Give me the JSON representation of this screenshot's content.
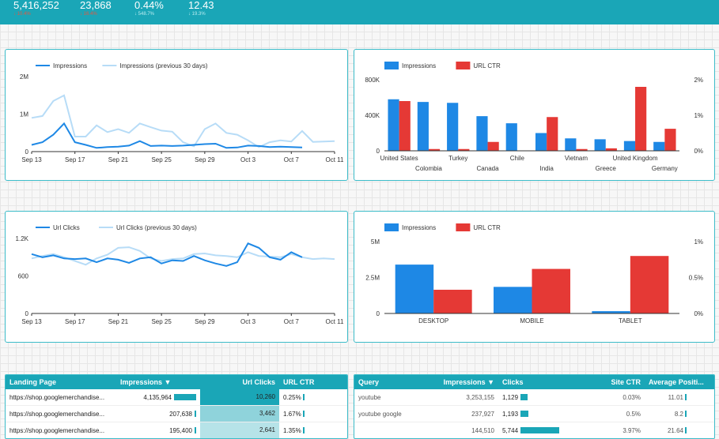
{
  "kpis": [
    {
      "value": "5,416,252",
      "delta": "↓ 10.4%",
      "tone": "neg"
    },
    {
      "value": "23,868",
      "delta": "↓ 16.4%",
      "tone": "neg"
    },
    {
      "value": "0.44%",
      "delta": "↓ 548.7%",
      "tone": "pos"
    },
    {
      "value": "12.43",
      "delta": "↓ 19.3%",
      "tone": "pos"
    }
  ],
  "chart_data": [
    {
      "type": "line",
      "title": "",
      "legend": [
        "Impressions",
        "Impressions (previous 30 days)"
      ],
      "x": [
        "Sep 13",
        "Sep 14",
        "Sep 15",
        "Sep 16",
        "Sep 17",
        "Sep 18",
        "Sep 19",
        "Sep 20",
        "Sep 21",
        "Sep 22",
        "Sep 23",
        "Sep 24",
        "Sep 25",
        "Sep 26",
        "Sep 27",
        "Sep 28",
        "Sep 29",
        "Sep 30",
        "Oct 1",
        "Oct 2",
        "Oct 3",
        "Oct 4",
        "Oct 5",
        "Oct 6",
        "Oct 7",
        "Oct 8",
        "Oct 9",
        "Oct 10",
        "Oct 11"
      ],
      "xticks": [
        "Sep 13",
        "Sep 17",
        "Sep 21",
        "Sep 25",
        "Sep 29",
        "Oct 3",
        "Oct 7",
        "Oct 11"
      ],
      "yticks": [
        "0",
        "1M",
        "2M"
      ],
      "ylim": [
        0,
        2000000
      ],
      "series": [
        {
          "name": "Impressions",
          "color": "#1e88e5",
          "values": [
            180000,
            250000,
            450000,
            750000,
            250000,
            180000,
            100000,
            120000,
            130000,
            160000,
            280000,
            150000,
            160000,
            150000,
            160000,
            180000,
            200000,
            210000,
            100000,
            110000,
            160000,
            150000,
            120000,
            130000,
            120000,
            110000,
            null,
            null,
            null
          ]
        },
        {
          "name": "Impressions (previous 30 days)",
          "color": "#b7dcf7",
          "values": [
            900000,
            950000,
            1350000,
            1500000,
            400000,
            400000,
            700000,
            520000,
            600000,
            500000,
            750000,
            650000,
            560000,
            530000,
            250000,
            140000,
            600000,
            750000,
            500000,
            450000,
            300000,
            120000,
            250000,
            300000,
            270000,
            550000,
            260000,
            270000,
            280000
          ]
        }
      ]
    },
    {
      "type": "bar",
      "legend": [
        "Impressions",
        "URL CTR"
      ],
      "categories": [
        "United States",
        "Colombia",
        "Turkey",
        "Canada",
        "Chile",
        "India",
        "Vietnam",
        "Greece",
        "United Kingdom",
        "Germany"
      ],
      "yticks_left": [
        "0",
        "400K",
        "800K"
      ],
      "yticks_right": [
        "0%",
        "1%",
        "2%"
      ],
      "ylim": [
        0,
        800000
      ],
      "y2lim": [
        0,
        2
      ],
      "series": [
        {
          "name": "Impressions",
          "color": "#1e88e5",
          "values": [
            580000,
            550000,
            540000,
            390000,
            310000,
            200000,
            140000,
            130000,
            110000,
            100000
          ]
        },
        {
          "name": "URL CTR",
          "color": "#e53935",
          "values": [
            1.4,
            0.05,
            0.05,
            0.25,
            0,
            0.95,
            0.05,
            0.07,
            1.8,
            0.62
          ]
        }
      ]
    },
    {
      "type": "line",
      "legend": [
        "Url Clicks",
        "Url Clicks (previous 30 days)"
      ],
      "x": [
        "Sep 13",
        "Sep 14",
        "Sep 15",
        "Sep 16",
        "Sep 17",
        "Sep 18",
        "Sep 19",
        "Sep 20",
        "Sep 21",
        "Sep 22",
        "Sep 23",
        "Sep 24",
        "Sep 25",
        "Sep 26",
        "Sep 27",
        "Sep 28",
        "Sep 29",
        "Sep 30",
        "Oct 1",
        "Oct 2",
        "Oct 3",
        "Oct 4",
        "Oct 5",
        "Oct 6",
        "Oct 7",
        "Oct 8",
        "Oct 9",
        "Oct 10",
        "Oct 11"
      ],
      "xticks": [
        "Sep 13",
        "Sep 17",
        "Sep 21",
        "Sep 25",
        "Sep 29",
        "Oct 3",
        "Oct 7",
        "Oct 11"
      ],
      "yticks": [
        "0",
        "600",
        "1.2K"
      ],
      "ylim": [
        0,
        1200
      ],
      "series": [
        {
          "name": "Url Clicks",
          "color": "#1e88e5",
          "values": [
            950,
            900,
            930,
            880,
            870,
            880,
            820,
            880,
            860,
            810,
            880,
            900,
            800,
            850,
            840,
            920,
            850,
            800,
            760,
            820,
            1120,
            1050,
            900,
            860,
            980,
            900,
            null,
            null,
            null
          ]
        },
        {
          "name": "Url Clicks (previous 30 days)",
          "color": "#b7dcf7",
          "values": [
            880,
            920,
            950,
            900,
            840,
            780,
            880,
            940,
            1050,
            1060,
            1000,
            880,
            840,
            870,
            880,
            950,
            960,
            930,
            920,
            900,
            980,
            920,
            910,
            900,
            950,
            900,
            870,
            880,
            870
          ]
        }
      ]
    },
    {
      "type": "bar",
      "legend": [
        "Impressions",
        "URL CTR"
      ],
      "categories": [
        "DESKTOP",
        "MOBILE",
        "TABLET"
      ],
      "yticks_left": [
        "0",
        "2.5M",
        "5M"
      ],
      "yticks_right": [
        "0%",
        "0.5%",
        "1%"
      ],
      "ylim": [
        0,
        5000000
      ],
      "y2lim": [
        0,
        1
      ],
      "series": [
        {
          "name": "Impressions",
          "color": "#1e88e5",
          "values": [
            3400000,
            1850000,
            160000
          ]
        },
        {
          "name": "URL CTR",
          "color": "#e53935",
          "values": [
            0.33,
            0.62,
            0.8
          ]
        }
      ]
    }
  ],
  "landing_table": {
    "headers": [
      "Landing Page",
      "Impressions ▼",
      "Url Clicks",
      "URL CTR"
    ],
    "rows": [
      {
        "page": "https://shop.googlemerchandise...",
        "impressions": "4,135,964",
        "imp_frac": 1.0,
        "clicks": "10,260",
        "click_shade": "#1aa6b7",
        "ctr": "0.25%",
        "ctr_frac": 0.1
      },
      {
        "page": "https://shop.googlemerchandise...",
        "impressions": "207,638",
        "imp_frac": 0.05,
        "clicks": "3,462",
        "click_shade": "#8fd3db",
        "ctr": "1.67%",
        "ctr_frac": 0.45
      },
      {
        "page": "https://shop.googlemerchandise...",
        "impressions": "195,400",
        "imp_frac": 0.05,
        "clicks": "2,641",
        "click_shade": "#b6e3e8",
        "ctr": "1.35%",
        "ctr_frac": 0.36
      }
    ]
  },
  "query_table": {
    "headers": [
      "Query",
      "Impressions ▼",
      "Clicks",
      "Site CTR",
      "Average Positi..."
    ],
    "rows": [
      {
        "query": "youtube",
        "impressions": "3,253,155",
        "clicks": "1,129",
        "clicks_frac": 0.12,
        "ctr": "0.03%",
        "pos": "11.01"
      },
      {
        "query": "youtube google",
        "impressions": "237,927",
        "clicks": "1,193",
        "clicks_frac": 0.13,
        "ctr": "0.5%",
        "pos": "8.2"
      },
      {
        "query": "",
        "impressions": "144,510",
        "clicks": "5,744",
        "clicks_frac": 0.63,
        "ctr": "3.97%",
        "pos": "21.64"
      }
    ]
  }
}
